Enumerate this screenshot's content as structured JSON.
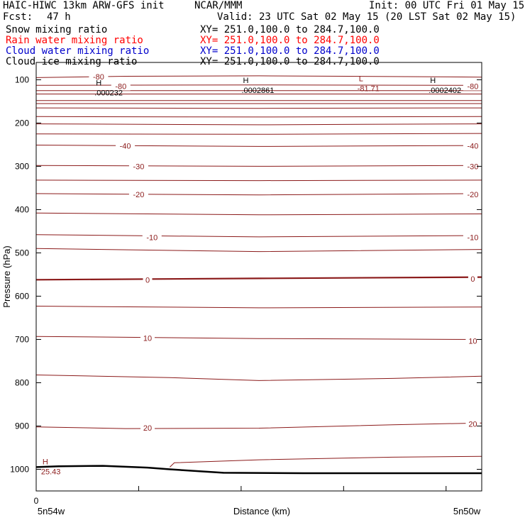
{
  "header": {
    "title": "HAIC-HIWC 13km ARW-GFS init",
    "org": "NCAR/MMM",
    "init": "Init: 00 UTC Fri 01 May 15",
    "fcst_label": "Fcst:",
    "fcst_value": "47 h",
    "valid": "Valid: 23 UTC Sat 02 May 15 (20 LST Sat 02 May 15)"
  },
  "fields": [
    {
      "name": "Snow mixing ratio",
      "xy": "XY= 251.0,100.0 to 284.7,100.0",
      "color": "#000000"
    },
    {
      "name": "Rain water mixing ratio",
      "xy": "XY= 251.0,100.0 to 284.7,100.0",
      "color": "#ff0000"
    },
    {
      "name": "Cloud water mixing ratio",
      "xy": "XY= 251.0,100.0 to 284.7,100.0",
      "color": "#0000cc"
    },
    {
      "name": "Cloud ice mixing ratio",
      "xy": "XY= 251.0,100.0 to 284.7,100.0",
      "color": "#000000"
    }
  ],
  "chart_data": {
    "type": "line",
    "title": "",
    "xlabel": "Distance (km)",
    "ylabel": "Pressure (hPa)",
    "ylim": [
      1050,
      60
    ],
    "yticks": [
      100,
      200,
      300,
      400,
      500,
      600,
      700,
      800,
      900,
      1000
    ],
    "x_origin_label": "0",
    "x_left_label": "5n54w",
    "x_right_label": "5n50w",
    "grid": false,
    "colors": {
      "contour": "#8b1a1a",
      "terrain": "#000000"
    },
    "extrema": [
      {
        "type": "H",
        "value": ".000232",
        "x": 0.15,
        "p": 120
      },
      {
        "type": "H",
        "value": ".0002861",
        "x": 0.48,
        "p": 114
      },
      {
        "type": "L",
        "value": "-81.71",
        "x": 0.74,
        "p": 110
      },
      {
        "type": "H",
        "value": ".0002402",
        "x": 0.9,
        "p": 114
      },
      {
        "type": "H",
        "value": "25.43",
        "x": 0.03,
        "p": 995
      }
    ],
    "contour_labels": [
      {
        "text": "-80",
        "x": 0.14,
        "p": 93
      },
      {
        "text": "-80",
        "x": 0.19,
        "p": 115
      },
      {
        "text": "-80",
        "x": 0.98,
        "p": 115
      },
      {
        "text": "-40",
        "x": 0.2,
        "p": 253
      },
      {
        "text": "-40",
        "x": 0.98,
        "p": 253
      },
      {
        "text": "-30",
        "x": 0.23,
        "p": 300
      },
      {
        "text": "-30",
        "x": 0.98,
        "p": 300
      },
      {
        "text": "-20",
        "x": 0.23,
        "p": 365
      },
      {
        "text": "-20",
        "x": 0.98,
        "p": 365
      },
      {
        "text": "-10",
        "x": 0.26,
        "p": 464
      },
      {
        "text": "-10",
        "x": 0.98,
        "p": 464
      },
      {
        "text": "0",
        "x": 0.25,
        "p": 562
      },
      {
        "text": "0",
        "x": 0.98,
        "p": 560
      },
      {
        "text": "10",
        "x": 0.25,
        "p": 697
      },
      {
        "text": "10",
        "x": 0.98,
        "p": 703
      },
      {
        "text": "20",
        "x": 0.25,
        "p": 904
      },
      {
        "text": "20",
        "x": 0.98,
        "p": 895
      }
    ],
    "series": [
      {
        "isotherm": -80,
        "points": [
          [
            0,
            95
          ],
          [
            0.2,
            92
          ],
          [
            0.5,
            91
          ],
          [
            0.7,
            92
          ],
          [
            1,
            94
          ]
        ]
      },
      {
        "isotherm": -82,
        "points": [
          [
            0,
            113
          ],
          [
            0.5,
            112
          ],
          [
            1,
            113
          ]
        ]
      },
      {
        "points": [
          [
            0,
            125
          ],
          [
            0.5,
            125
          ],
          [
            1,
            125
          ]
        ]
      },
      {
        "points": [
          [
            0,
            133
          ],
          [
            0.5,
            133
          ],
          [
            1,
            133
          ]
        ]
      },
      {
        "points": [
          [
            0,
            148
          ],
          [
            0.5,
            148
          ],
          [
            1,
            148
          ]
        ]
      },
      {
        "points": [
          [
            0,
            155
          ],
          [
            0.5,
            155
          ],
          [
            1,
            155
          ]
        ]
      },
      {
        "points": [
          [
            0,
            165
          ],
          [
            0.5,
            166
          ],
          [
            1,
            165
          ]
        ]
      },
      {
        "points": [
          [
            0,
            185
          ],
          [
            0.5,
            186
          ],
          [
            1,
            185
          ]
        ]
      },
      {
        "points": [
          [
            0,
            202
          ],
          [
            0.5,
            204
          ],
          [
            1,
            202
          ]
        ]
      },
      {
        "points": [
          [
            0,
            225
          ],
          [
            0.5,
            226
          ],
          [
            1,
            224
          ]
        ]
      },
      {
        "isotherm": -40,
        "points": [
          [
            0,
            251
          ],
          [
            0.5,
            254
          ],
          [
            1,
            252
          ]
        ]
      },
      {
        "isotherm": -30,
        "points": [
          [
            0,
            298
          ],
          [
            0.5,
            300
          ],
          [
            1,
            298
          ]
        ]
      },
      {
        "points": [
          [
            0,
            332
          ],
          [
            0.5,
            333
          ],
          [
            1,
            332
          ]
        ]
      },
      {
        "isotherm": -20,
        "points": [
          [
            0,
            363
          ],
          [
            0.5,
            366
          ],
          [
            1,
            363
          ]
        ]
      },
      {
        "points": [
          [
            0,
            408
          ],
          [
            0.5,
            412
          ],
          [
            1,
            410
          ]
        ]
      },
      {
        "isotherm": -10,
        "points": [
          [
            0,
            458
          ],
          [
            0.5,
            463
          ],
          [
            1,
            460
          ]
        ]
      },
      {
        "points": [
          [
            0,
            490
          ],
          [
            0.5,
            497
          ],
          [
            1,
            492
          ]
        ]
      },
      {
        "isotherm": 0,
        "bold": true,
        "points": [
          [
            0,
            562
          ],
          [
            0.5,
            559
          ],
          [
            1,
            556
          ]
        ]
      },
      {
        "points": [
          [
            0,
            623
          ],
          [
            0.5,
            627
          ],
          [
            1,
            625
          ]
        ]
      },
      {
        "isotherm": 10,
        "points": [
          [
            0,
            693
          ],
          [
            0.5,
            698
          ],
          [
            1,
            700
          ]
        ]
      },
      {
        "points": [
          [
            0,
            782
          ],
          [
            0.3,
            788
          ],
          [
            0.5,
            795
          ],
          [
            0.8,
            790
          ],
          [
            1,
            785
          ]
        ]
      },
      {
        "isotherm": 20,
        "points": [
          [
            0,
            902
          ],
          [
            0.2,
            906
          ],
          [
            0.5,
            905
          ],
          [
            0.8,
            897
          ],
          [
            1,
            893
          ]
        ]
      },
      {
        "points": [
          [
            0.3,
            995
          ],
          [
            0.31,
            985
          ],
          [
            0.5,
            978
          ],
          [
            0.8,
            972
          ],
          [
            1,
            970
          ]
        ]
      }
    ],
    "terrain": [
      [
        0,
        995
      ],
      [
        0.05,
        993
      ],
      [
        0.15,
        992
      ],
      [
        0.25,
        996
      ],
      [
        0.3,
        1000
      ],
      [
        0.42,
        1008
      ],
      [
        0.6,
        1009
      ],
      [
        0.8,
        1009
      ],
      [
        1,
        1009
      ]
    ]
  }
}
